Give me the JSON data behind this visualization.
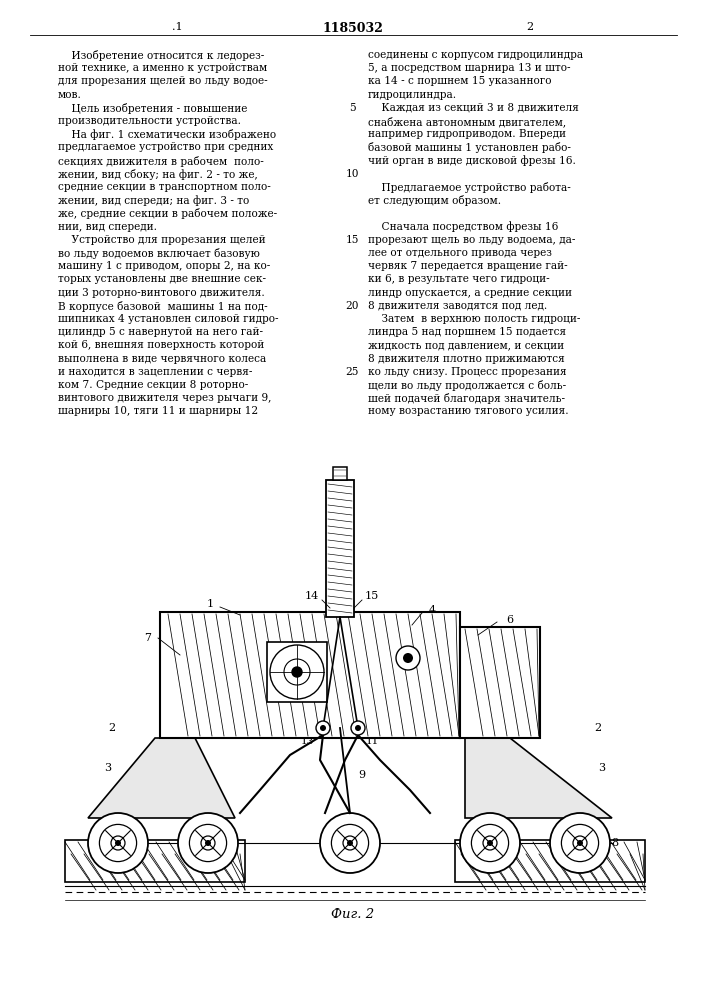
{
  "page_width": 7.07,
  "page_height": 10.0,
  "bg_color": "#ffffff",
  "header_num_left": ".1",
  "header_patent": "1185032",
  "header_num_right": "2",
  "col1_lines": [
    "    Изобретение относится к ледорез-",
    "ной технике, а именно к устройствам",
    "для прорезания щелей во льду водое-",
    "мов.",
    "    Цель изобретения - повышение",
    "производительности устройства.",
    "    На фиг. 1 схематически изображено",
    "предлагаемое устройство при средних",
    "секциях движителя в рабочем  поло-",
    "жении, вид сбоку; на фиг. 2 - то же,",
    "средние секции в транспортном поло-",
    "жении, вид спереди; на фиг. 3 - то",
    "же, средние секции в рабочем положе-",
    "нии, вид спереди.",
    "    Устройство для прорезания щелей",
    "во льду водоемов включает базовую",
    "машину 1 с приводом, опоры 2, на ко-",
    "торых установлены две внешние сек-",
    "ции 3 роторно-винтового движителя.",
    "В корпусе базовой  машины 1 на под-",
    "шипниках 4 установлен силовой гидро-",
    "цилиндр 5 с навернутой на него гай-",
    "кой 6, внешняя поверхность которой",
    "выполнена в виде червячного колеса",
    "и находится в зацеплении с червя-",
    "ком 7. Средние секции 8 роторно-",
    "винтового движителя через рычаги 9,",
    "шарниры 10, тяги 11 и шарниры 12"
  ],
  "col2_lines": [
    "соединены с корпусом гидроцилиндра",
    "5, а посредством шарнира 13 и што-",
    "ка 14 - с поршнем 15 указанного",
    "гидроцилиндра.",
    "    Каждая из секций 3 и 8 движителя",
    "снабжена автономным двигателем,",
    "например гидроприводом. Впереди",
    "базовой машины 1 установлен рабо-",
    "чий орган в виде дисковой фрезы 16.",
    "",
    "    Предлагаемое устройство работа-",
    "ет следующим образом.",
    "",
    "    Сначала посредством фрезы 16",
    "прорезают щель во льду водоема, да-",
    "лее от отдельного привода через",
    "червяк 7 передается вращение гай-",
    "ки 6, в результате чего гидроци-",
    "линдр опускается, а средние секции",
    "8 движителя заводятся под лед.",
    "    Затем  в верхнюю полость гидроци-",
    "линдра 5 над поршнем 15 подается",
    "жидкость под давлением, и секции",
    "8 движителя плотно прижимаются",
    "ко льду снизу. Процесс прорезания",
    "щели во льду продолжается с боль-",
    "шей подачей благодаря значитель-",
    "ному возрастанию тягового усилия."
  ],
  "line_number_rows": [
    5,
    10,
    15,
    20,
    25
  ],
  "fig_caption": "Фиг. 2"
}
